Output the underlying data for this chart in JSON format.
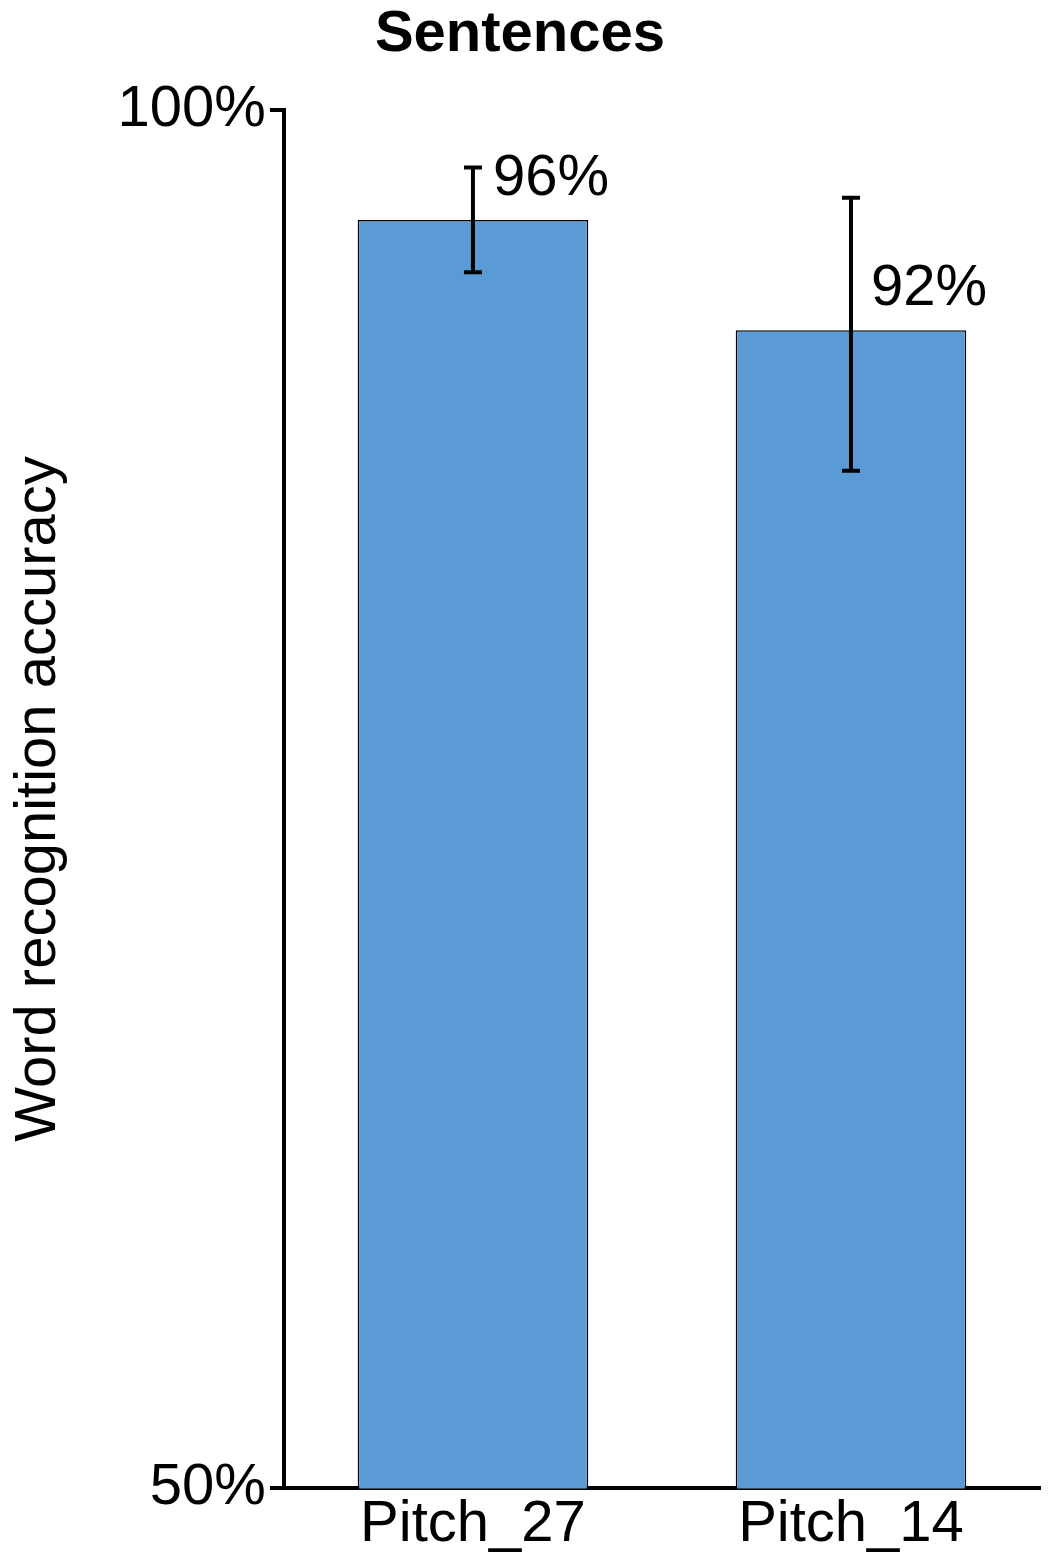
{
  "chart_data": {
    "type": "bar",
    "title": "Sentences",
    "ylabel": "Word recognition accuracy",
    "categories": [
      "Pitch_27",
      "Pitch_14"
    ],
    "values": [
      96,
      92
    ],
    "errors": [
      [
        94.1,
        97.9
      ],
      [
        86.9,
        96.8
      ]
    ],
    "value_labels": [
      "96%",
      "92%"
    ],
    "color": "#5b9bd5",
    "ylim": [
      50,
      100
    ],
    "yticks": [
      {
        "value": 50,
        "label": "50%"
      },
      {
        "value": 100,
        "label": "100%"
      }
    ],
    "grid": false,
    "legend": false
  }
}
